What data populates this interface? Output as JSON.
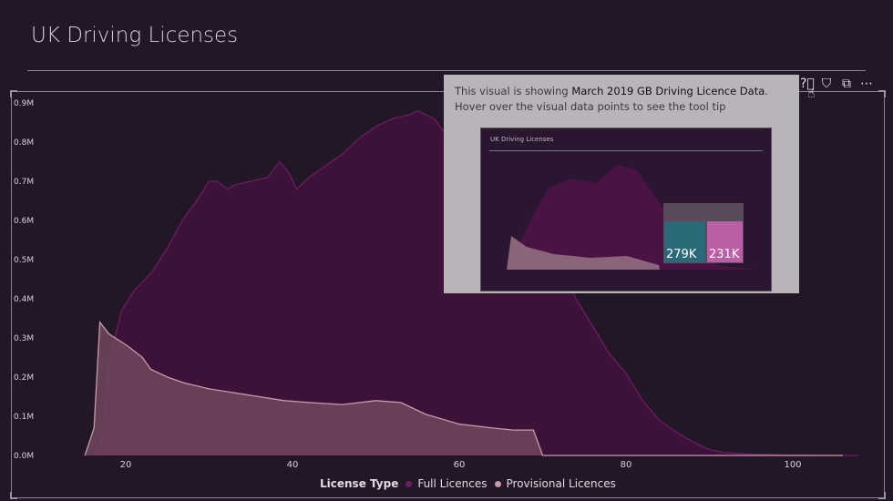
{
  "page": {
    "title": "UK Driving Licenses"
  },
  "visual_header": {
    "icons": [
      "help-icon",
      "filter-icon",
      "focus-mode-icon",
      "more-options-icon"
    ]
  },
  "tooltip": {
    "text_before": "This visual is showing ",
    "text_bold": "March 2019 GB Driving Licence Data",
    "text_after": ". Hover over the visual data points to see the tool tip",
    "thumbnail": {
      "title": "UK Driving Licenses",
      "male_value": "279K",
      "female_value": "231K"
    }
  },
  "colors": {
    "background": "#231627",
    "full": "#3d1238",
    "full_line": "#6e1d62",
    "provisional": "#70475e",
    "provisional_line": "#c89aa8"
  },
  "chart_data": {
    "type": "area",
    "xlim": [
      14,
      110
    ],
    "ylim": [
      0,
      0.9
    ],
    "y_ticks": [
      "0.0M",
      "0.1M",
      "0.2M",
      "0.3M",
      "0.4M",
      "0.5M",
      "0.6M",
      "0.7M",
      "0.8M",
      "0.9M"
    ],
    "x_ticks": [
      "20",
      "40",
      "60",
      "80",
      "100"
    ],
    "legend_title": "License Type",
    "grid": false,
    "legend_position": "bottom",
    "series": [
      {
        "name": "Full Licences",
        "unit": "M",
        "points": [
          [
            16.2,
            0
          ],
          [
            17,
            0.03
          ],
          [
            17.5,
            0.1
          ],
          [
            18,
            0.24
          ],
          [
            19.5,
            0.37
          ],
          [
            21,
            0.42
          ],
          [
            23.2,
            0.47
          ],
          [
            25,
            0.53
          ],
          [
            26.8,
            0.6
          ],
          [
            28.5,
            0.65
          ],
          [
            30,
            0.7
          ],
          [
            31,
            0.7
          ],
          [
            32.2,
            0.68
          ],
          [
            33,
            0.69
          ],
          [
            35,
            0.7
          ],
          [
            37,
            0.71
          ],
          [
            38.5,
            0.75
          ],
          [
            39.6,
            0.72
          ],
          [
            40.5,
            0.68
          ],
          [
            42,
            0.71
          ],
          [
            44,
            0.74
          ],
          [
            46,
            0.77
          ],
          [
            48,
            0.81
          ],
          [
            50,
            0.84
          ],
          [
            52,
            0.86
          ],
          [
            54,
            0.87
          ],
          [
            55,
            0.88
          ],
          [
            56,
            0.87
          ],
          [
            57,
            0.86
          ],
          [
            58,
            0.83
          ],
          [
            60,
            0.78
          ],
          [
            61,
            0.74
          ],
          [
            63,
            0.7
          ],
          [
            65,
            0.65
          ],
          [
            67,
            0.61
          ],
          [
            68.3,
            0.58
          ],
          [
            70,
            0.54
          ],
          [
            72,
            0.49
          ],
          [
            74,
            0.4
          ],
          [
            76,
            0.33
          ],
          [
            78,
            0.26
          ],
          [
            80,
            0.21
          ],
          [
            82,
            0.14
          ],
          [
            84,
            0.09
          ],
          [
            86,
            0.06
          ],
          [
            88,
            0.035
          ],
          [
            90,
            0.015
          ],
          [
            92,
            0.007
          ],
          [
            95,
            0.003
          ],
          [
            100,
            0.001
          ],
          [
            105,
            0
          ],
          [
            108,
            0
          ]
        ]
      },
      {
        "name": "Provisional Licences",
        "unit": "M",
        "points": [
          [
            15.1,
            0
          ],
          [
            16.2,
            0.07
          ],
          [
            16.9,
            0.34
          ],
          [
            18,
            0.31
          ],
          [
            20.2,
            0.28
          ],
          [
            22,
            0.25
          ],
          [
            23,
            0.22
          ],
          [
            25,
            0.2
          ],
          [
            27,
            0.185
          ],
          [
            30,
            0.17
          ],
          [
            33,
            0.16
          ],
          [
            36,
            0.15
          ],
          [
            39,
            0.14
          ],
          [
            42,
            0.135
          ],
          [
            46,
            0.13
          ],
          [
            50,
            0.14
          ],
          [
            53,
            0.135
          ],
          [
            56,
            0.105
          ],
          [
            60,
            0.08
          ],
          [
            64,
            0.07
          ],
          [
            66.5,
            0.065
          ],
          [
            68.9,
            0.065
          ],
          [
            70,
            0
          ],
          [
            80,
            0
          ],
          [
            100,
            0
          ],
          [
            106,
            0
          ]
        ]
      }
    ]
  }
}
